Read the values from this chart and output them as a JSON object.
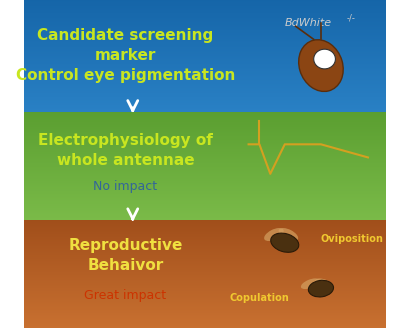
{
  "panel1_color_top": "#1a6aad",
  "panel1_color_bottom": "#2288cc",
  "panel2_color_top": "#5a9e3a",
  "panel2_color_bottom": "#7ab84a",
  "panel3_color_top": "#b8622a",
  "panel3_color_bottom": "#c87832",
  "panel1_main_text": "Candidate screening\nmarker\nControl eye pigmentation",
  "panel1_main_color": "#c8e620",
  "panel1_label": "BdWhite",
  "panel1_label_color": "#cccccc",
  "panel1_superscript": "-/-",
  "panel2_main_text": "Electrophysiology of\nwhole antennae",
  "panel2_main_color": "#c8e620",
  "panel2_sub_text": "No impact",
  "panel2_sub_color": "#336699",
  "panel3_main_text": "Reproductive\nBehaivor",
  "panel3_main_color": "#f0e040",
  "panel3_sub_text": "Great impact",
  "panel3_sub_color": "#cc3300",
  "arrow_color": "#ffffff",
  "figsize": [
    3.94,
    3.28
  ],
  "dpi": 100
}
